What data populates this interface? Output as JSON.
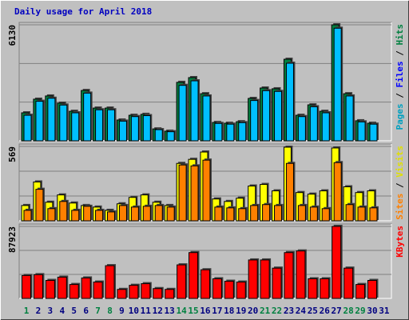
{
  "chart_data": [
    {
      "type": "bar",
      "title": "Daily usage for April 2018",
      "ylim": [
        0,
        6130
      ],
      "yticks": [
        6130
      ],
      "legend": [
        {
          "text": "Pages",
          "color": "#00a0c0"
        },
        {
          "text": " / ",
          "color": "#000000"
        },
        {
          "text": "Files",
          "color": "#0000ff"
        },
        {
          "text": " / ",
          "color": "#000000"
        },
        {
          "text": "Hits",
          "color": "#008040"
        }
      ],
      "series": [
        {
          "name": "Hits",
          "color": "#008040",
          "values": [
            1480,
            2200,
            2370,
            1990,
            1560,
            2660,
            1730,
            1730,
            1100,
            1350,
            1400,
            630,
            510,
            3090,
            3340,
            2490,
            970,
            930,
            1010,
            2240,
            2790,
            2750,
            4310,
            1350,
            1900,
            1560,
            6130,
            2490,
            1060,
            930,
            null
          ]
        },
        {
          "name": "Files",
          "color": "#00bfff",
          "values": [
            1350,
            2090,
            2250,
            1890,
            1480,
            2520,
            1640,
            1640,
            1040,
            1280,
            1330,
            590,
            480,
            2930,
            3170,
            2370,
            920,
            880,
            960,
            2130,
            2650,
            2610,
            4100,
            1280,
            1800,
            1480,
            5950,
            2370,
            1000,
            880,
            null
          ]
        }
      ]
    },
    {
      "type": "bar",
      "ylim": [
        0,
        569
      ],
      "yticks": [
        569
      ],
      "legend": [
        {
          "text": "Sites",
          "color": "#ff8000"
        },
        {
          "text": " / ",
          "color": "#000000"
        },
        {
          "text": "Visits",
          "color": "#e0e000"
        }
      ],
      "series": [
        {
          "name": "Visits",
          "color": "#ffff00",
          "values": [
            117,
            297,
            142,
            198,
            136,
            117,
            105,
            80,
            130,
            179,
            198,
            142,
            117,
            439,
            470,
            526,
            167,
            148,
            173,
            266,
            278,
            229,
            563,
            216,
            204,
            229,
            557,
            260,
            216,
            229,
            null
          ]
        },
        {
          "name": "Sites",
          "color": "#ff8000",
          "values": [
            80,
            241,
            93,
            148,
            80,
            111,
            80,
            68,
            117,
            105,
            111,
            117,
            105,
            427,
            420,
            464,
            105,
            99,
            93,
            117,
            124,
            117,
            439,
            117,
            105,
            93,
            445,
            124,
            105,
            99,
            null
          ]
        }
      ]
    },
    {
      "type": "bar",
      "ylim": [
        0,
        87923
      ],
      "yticks": [
        87923
      ],
      "legend": [
        {
          "text": "KBytes",
          "color": "#ff0000"
        }
      ],
      "series": [
        {
          "name": "KBytes",
          "color": "#ff0000",
          "values": [
            27975,
            28970,
            21980,
            25970,
            16985,
            24980,
            19980,
            39965,
            10990,
            15985,
            17985,
            11990,
            10990,
            40960,
            55950,
            34970,
            23980,
            20980,
            19980,
            46960,
            46960,
            36970,
            55950,
            57950,
            23980,
            23980,
            87923,
            36970,
            16985,
            21980,
            null
          ]
        }
      ],
      "categories": [
        "1",
        "2",
        "3",
        "4",
        "5",
        "6",
        "7",
        "8",
        "9",
        "10",
        "11",
        "12",
        "13",
        "14",
        "15",
        "16",
        "17",
        "18",
        "19",
        "20",
        "21",
        "22",
        "23",
        "24",
        "25",
        "26",
        "27",
        "28",
        "29",
        "30",
        "31"
      ],
      "highlight_categories": [
        "1",
        "7",
        "8",
        "14",
        "15",
        "21",
        "22",
        "28",
        "29"
      ],
      "highlight_color": "#008040"
    }
  ]
}
